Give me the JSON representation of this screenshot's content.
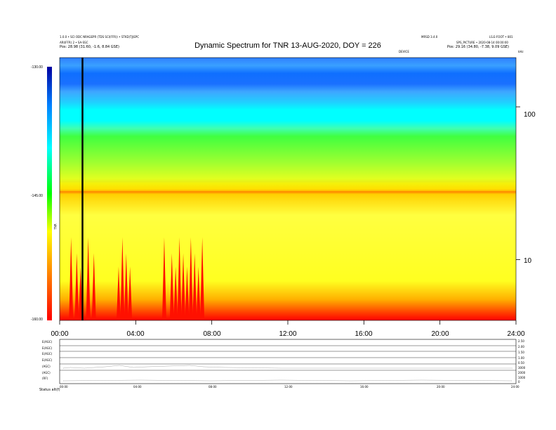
{
  "header": {
    "left_line1": "1.0.0 • SCI ODC NRAGEPR (TDS SCI(FFR)) • STKD(TJ)EPC",
    "left_line2": "ARI(FFR) 2 • SA-SSC",
    "left_line3_label": "Pos:",
    "left_line3_value": "28.98 (31.60, -1.6, 8.84 GSE)",
    "right_line1a": "MRSD 3.4.0",
    "right_line1b": "LS.E-FOOT • 801",
    "right_line2": "SPS_PICTURE • 2020-08-14 00:00:00",
    "right_line3_label": "Pos:",
    "right_line3_value": "29.16 (34.80, -7.38, 9.09 GSE)",
    "right_line4": "DEVICE",
    "unit_label": "kHz"
  },
  "chart_data": {
    "type": "heatmap",
    "title": "Dynamic Spectrum for TNR 13-AUG-2020, DOY = 226",
    "x": {
      "ticks": [
        "00:00",
        "04:00",
        "08:00",
        "12:00",
        "16:00",
        "20:00",
        "24:00"
      ],
      "range_hours": [
        0,
        24
      ]
    },
    "y": {
      "scale": "log",
      "ticks": [
        "100",
        "10"
      ],
      "range_khz": [
        4,
        210
      ]
    },
    "colorbar": {
      "ticks": [
        "-130.00",
        "-145.00",
        "-160.00"
      ],
      "range": [
        -160,
        -130
      ],
      "label": "TNR",
      "colors": [
        "#ff0000",
        "#ff8000",
        "#ffff00",
        "#00ff00",
        "#00ffff",
        "#0080ff",
        "#0000a0"
      ]
    },
    "marker_line_hour": 1.2,
    "spectral_bands": [
      {
        "name": "top blue band",
        "freq_khz": [
          110,
          210
        ],
        "level": -131
      },
      {
        "name": "cyan region",
        "freq_khz": [
          80,
          110
        ],
        "level": -136
      },
      {
        "name": "green band",
        "freq_khz": [
          40,
          80
        ],
        "level": -140
      },
      {
        "name": "orange ridge",
        "freq_khz": [
          28,
          32
        ],
        "level": -149
      },
      {
        "name": "yellow background",
        "freq_khz": [
          6,
          28
        ],
        "level": -150
      },
      {
        "name": "red low band",
        "freq_khz": [
          4,
          6
        ],
        "level": -158
      }
    ],
    "bursts_hours": [
      0.6,
      0.9,
      1.1,
      1.5,
      1.8,
      3.1,
      3.3,
      3.5,
      3.7,
      5.5,
      5.9,
      6.1,
      6.3,
      6.5,
      6.7,
      6.9,
      7.1,
      7.3,
      7.5
    ]
  },
  "bottom_panel": {
    "left_labels": [
      "E(AGC)",
      "E(AGC)",
      "E(AGC)",
      "E(AGC)",
      "(AGC)",
      "(AGC)",
      "(RF)"
    ],
    "right_labels": [
      "2.50",
      "2.00",
      "1.50",
      "1.00",
      "0.50",
      "3000",
      "2000",
      "1000",
      "0"
    ],
    "x_ticks": [
      "00:00",
      "04:00",
      "08:00",
      "12:00",
      "16:00",
      "20:00",
      "24:00"
    ],
    "footer_label": "Status",
    "footer_value": "alt(f)"
  }
}
